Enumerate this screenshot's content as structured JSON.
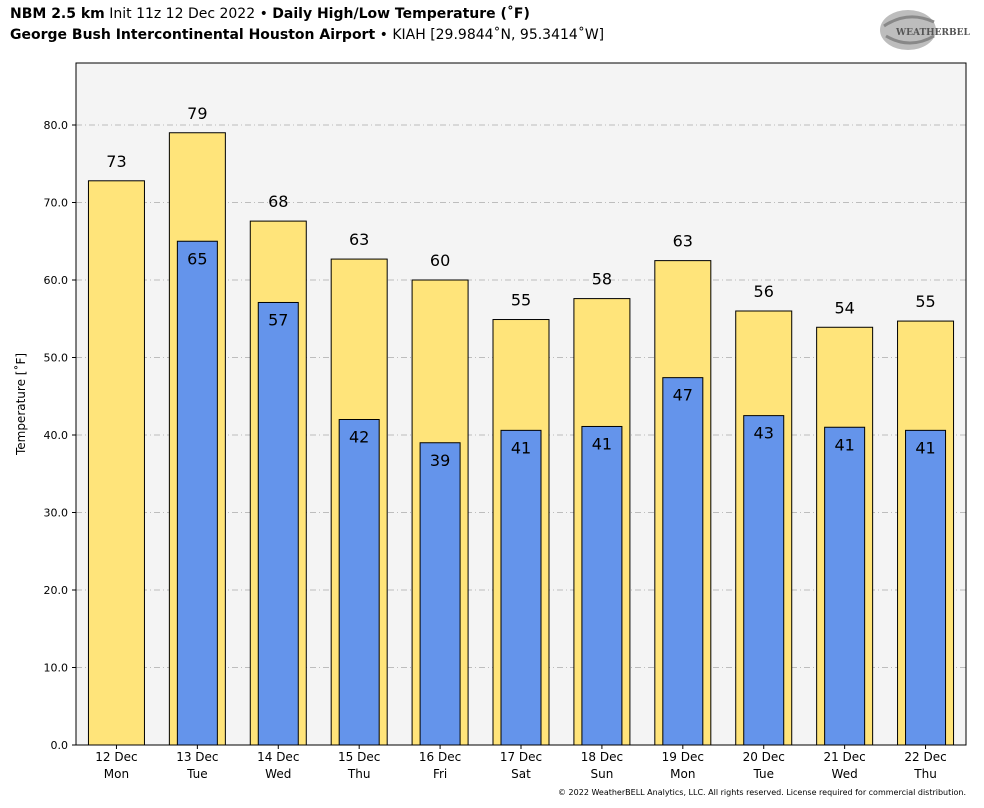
{
  "header": {
    "model": "NBM 2.5 km",
    "init": "Init 11z 12 Dec 2022",
    "bullet": "•",
    "product": "Daily High/Low Temperature (˚F)",
    "station_name": "George Bush Intercontinental Houston Airport",
    "station_info": "KIAH [29.9844˚N, 95.3414˚W]"
  },
  "logo": {
    "text": "WEATHERBELL"
  },
  "copyright": "© 2022 WeatherBELL Analytics, LLC. All rights reserved. License required for commercial distribution.",
  "colors": {
    "high_bar": "#FFE47A",
    "low_bar": "#6494EB",
    "plot_bg": "#F4F4F4",
    "grid": "#AAAAAA"
  },
  "chart_data": {
    "type": "bar",
    "title": "Daily High/Low Temperature (˚F)",
    "ylabel": "Temperature [˚F]",
    "ylim": [
      0,
      88
    ],
    "yticks": [
      "0.0",
      "10.0",
      "20.0",
      "30.0",
      "40.0",
      "50.0",
      "60.0",
      "70.0",
      "80.0"
    ],
    "grid": "horizontal dash-dot",
    "categories": [
      {
        "date": "12 Dec",
        "day": "Mon"
      },
      {
        "date": "13 Dec",
        "day": "Tue"
      },
      {
        "date": "14 Dec",
        "day": "Wed"
      },
      {
        "date": "15 Dec",
        "day": "Thu"
      },
      {
        "date": "16 Dec",
        "day": "Fri"
      },
      {
        "date": "17 Dec",
        "day": "Sat"
      },
      {
        "date": "18 Dec",
        "day": "Sun"
      },
      {
        "date": "19 Dec",
        "day": "Mon"
      },
      {
        "date": "20 Dec",
        "day": "Tue"
      },
      {
        "date": "21 Dec",
        "day": "Wed"
      },
      {
        "date": "22 Dec",
        "day": "Thu"
      }
    ],
    "series": [
      {
        "values": [
          72.8,
          79.0,
          67.6,
          62.7,
          60.0,
          54.9,
          57.6,
          62.5,
          56.0,
          53.9,
          54.7
        ],
        "labels": [
          "73",
          "79",
          "68",
          "63",
          "60",
          "55",
          "58",
          "63",
          "56",
          "54",
          "55"
        ]
      },
      {
        "values": [
          null,
          65.0,
          57.1,
          42.0,
          39.0,
          40.6,
          41.1,
          47.4,
          42.5,
          41.0,
          40.6
        ],
        "labels": [
          null,
          "65",
          "57",
          "42",
          "39",
          "41",
          "41",
          "47",
          "43",
          "41",
          "41"
        ]
      }
    ]
  }
}
